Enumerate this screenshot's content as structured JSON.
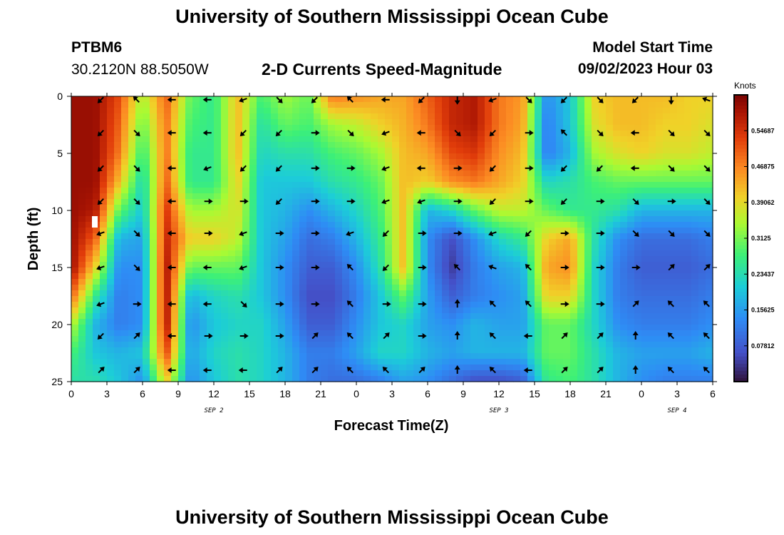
{
  "header": {
    "title": "University of Southern Mississippi Ocean Cube",
    "station": "PTBM6",
    "coords": "30.2120N  88.5050W",
    "subtitle": "2-D Currents Speed-Magnitude",
    "model_label": "Model Start Time",
    "model_time": "09/02/2023 Hour 03"
  },
  "footer": {
    "title": "University of Southern Mississippi Ocean Cube"
  },
  "chart_data": {
    "type": "heatmap",
    "title": "2-D Currents Speed-Magnitude",
    "xlabel": "Forecast Time(Z)",
    "ylabel": "Depth (ft)",
    "x_tick_labels": [
      "0",
      "3",
      "6",
      "9",
      "12",
      "15",
      "18",
      "21",
      "0",
      "3",
      "6",
      "9",
      "12",
      "15",
      "18",
      "21",
      "0",
      "3",
      "6"
    ],
    "x_hours": [
      0,
      54
    ],
    "y_ticks": [
      0,
      5,
      10,
      15,
      20,
      25
    ],
    "ylim": [
      0,
      25
    ],
    "date_labels": [
      {
        "label": "SEP 2",
        "hour": 12
      },
      {
        "label": "SEP 3",
        "hour": 36
      },
      {
        "label": "SEP 4",
        "hour": 51
      }
    ],
    "colorbar": {
      "unit": "Knots",
      "range": [
        0,
        0.625
      ],
      "tick_labels": [
        "0.07812",
        "0.15625",
        "0.23437",
        "0.3125",
        "0.39062",
        "0.46875",
        "0.54687"
      ],
      "tick_values": [
        0.07812,
        0.15625,
        0.23437,
        0.3125,
        0.39062,
        0.46875,
        0.54687
      ]
    },
    "speed_grid": {
      "hours": [
        0,
        2,
        4,
        6,
        8,
        10,
        12,
        14,
        16,
        18,
        20,
        22,
        24,
        26,
        28,
        30,
        32,
        34,
        36,
        38,
        40,
        42,
        44,
        46,
        48,
        50,
        52,
        54
      ],
      "depths": [
        0,
        2.5,
        5,
        7.5,
        10,
        12.5,
        15,
        17.5,
        20,
        22.5,
        25
      ],
      "values": [
        [
          0.6,
          0.6,
          0.52,
          0.34,
          0.5,
          0.3,
          0.26,
          0.42,
          0.28,
          0.34,
          0.3,
          0.48,
          0.46,
          0.44,
          0.44,
          0.5,
          0.56,
          0.58,
          0.48,
          0.45,
          0.14,
          0.2,
          0.4,
          0.42,
          0.42,
          0.42,
          0.4,
          0.4
        ],
        [
          0.6,
          0.6,
          0.5,
          0.3,
          0.48,
          0.28,
          0.26,
          0.42,
          0.24,
          0.3,
          0.28,
          0.34,
          0.36,
          0.4,
          0.43,
          0.48,
          0.56,
          0.58,
          0.48,
          0.44,
          0.12,
          0.2,
          0.38,
          0.42,
          0.42,
          0.4,
          0.4,
          0.38
        ],
        [
          0.6,
          0.6,
          0.48,
          0.26,
          0.48,
          0.26,
          0.26,
          0.42,
          0.22,
          0.24,
          0.24,
          0.28,
          0.3,
          0.34,
          0.42,
          0.44,
          0.52,
          0.54,
          0.46,
          0.42,
          0.12,
          0.18,
          0.34,
          0.38,
          0.4,
          0.38,
          0.38,
          0.36
        ],
        [
          0.6,
          0.6,
          0.42,
          0.22,
          0.5,
          0.26,
          0.26,
          0.4,
          0.2,
          0.2,
          0.2,
          0.24,
          0.26,
          0.3,
          0.42,
          0.4,
          0.46,
          0.48,
          0.44,
          0.4,
          0.22,
          0.24,
          0.28,
          0.3,
          0.3,
          0.3,
          0.3,
          0.3
        ],
        [
          0.6,
          0.58,
          0.3,
          0.2,
          0.54,
          0.34,
          0.34,
          0.38,
          0.2,
          0.18,
          0.14,
          0.18,
          0.22,
          0.28,
          0.42,
          0.18,
          0.22,
          0.3,
          0.36,
          0.36,
          0.3,
          0.26,
          0.26,
          0.24,
          0.18,
          0.18,
          0.18,
          0.18
        ],
        [
          0.6,
          0.5,
          0.18,
          0.16,
          0.56,
          0.4,
          0.4,
          0.36,
          0.2,
          0.16,
          0.1,
          0.12,
          0.18,
          0.26,
          0.42,
          0.14,
          0.06,
          0.14,
          0.22,
          0.26,
          0.4,
          0.44,
          0.24,
          0.14,
          0.1,
          0.1,
          0.1,
          0.12
        ],
        [
          0.6,
          0.4,
          0.14,
          0.14,
          0.58,
          0.3,
          0.3,
          0.3,
          0.2,
          0.14,
          0.08,
          0.08,
          0.14,
          0.24,
          0.42,
          0.14,
          0.04,
          0.12,
          0.16,
          0.18,
          0.44,
          0.46,
          0.22,
          0.12,
          0.08,
          0.08,
          0.08,
          0.1
        ],
        [
          0.5,
          0.26,
          0.12,
          0.14,
          0.58,
          0.18,
          0.22,
          0.24,
          0.2,
          0.14,
          0.06,
          0.06,
          0.12,
          0.2,
          0.3,
          0.16,
          0.08,
          0.12,
          0.14,
          0.16,
          0.4,
          0.4,
          0.22,
          0.12,
          0.1,
          0.1,
          0.1,
          0.12
        ],
        [
          0.36,
          0.18,
          0.12,
          0.14,
          0.58,
          0.14,
          0.2,
          0.22,
          0.22,
          0.16,
          0.08,
          0.08,
          0.14,
          0.2,
          0.22,
          0.16,
          0.14,
          0.18,
          0.16,
          0.16,
          0.3,
          0.3,
          0.22,
          0.14,
          0.12,
          0.12,
          0.12,
          0.14
        ],
        [
          0.28,
          0.2,
          0.18,
          0.2,
          0.52,
          0.16,
          0.22,
          0.24,
          0.22,
          0.18,
          0.12,
          0.12,
          0.16,
          0.22,
          0.22,
          0.18,
          0.16,
          0.18,
          0.18,
          0.18,
          0.3,
          0.3,
          0.24,
          0.18,
          0.16,
          0.16,
          0.16,
          0.18
        ],
        [
          0.24,
          0.24,
          0.2,
          0.14,
          0.4,
          0.14,
          0.2,
          0.24,
          0.22,
          0.18,
          0.12,
          0.1,
          0.1,
          0.12,
          0.16,
          0.14,
          0.1,
          0.06,
          0.06,
          0.08,
          0.26,
          0.28,
          0.24,
          0.18,
          0.14,
          0.12,
          0.12,
          0.12
        ]
      ]
    },
    "vectors": {
      "hours": [
        2.5,
        5.5,
        8.5,
        11.5,
        14.5,
        17.5,
        20.5,
        23.5,
        26.5,
        29.5,
        32.5,
        35.5,
        38.5,
        41.5,
        44.5,
        47.5,
        50.5,
        53.5
      ],
      "depths": [
        0.3,
        3.2,
        6.3,
        9.2,
        12.0,
        15.0,
        18.2,
        21.0,
        24.0
      ],
      "directions_deg": [
        [
          225,
          135,
          180,
          180,
          200,
          315,
          225,
          135,
          180,
          225,
          270,
          200,
          315,
          225,
          315,
          225,
          270,
          160
        ],
        [
          225,
          315,
          180,
          180,
          225,
          225,
          0,
          315,
          200,
          180,
          315,
          225,
          0,
          135,
          315,
          180,
          315,
          315
        ],
        [
          225,
          315,
          180,
          200,
          225,
          225,
          0,
          0,
          200,
          180,
          0,
          225,
          0,
          225,
          225,
          180,
          315,
          315
        ],
        [
          225,
          315,
          180,
          0,
          0,
          225,
          0,
          0,
          200,
          200,
          0,
          225,
          0,
          225,
          0,
          315,
          0,
          315
        ],
        [
          200,
          315,
          180,
          0,
          200,
          0,
          0,
          200,
          225,
          0,
          0,
          200,
          225,
          0,
          0,
          315,
          315,
          315
        ],
        [
          200,
          315,
          180,
          180,
          200,
          0,
          0,
          135,
          225,
          0,
          135,
          160,
          135,
          0,
          0,
          0,
          45,
          45
        ],
        [
          200,
          0,
          180,
          180,
          315,
          0,
          0,
          135,
          0,
          0,
          90,
          135,
          135,
          0,
          0,
          45,
          135,
          135
        ],
        [
          225,
          45,
          180,
          0,
          0,
          0,
          45,
          135,
          45,
          0,
          90,
          135,
          180,
          45,
          45,
          90,
          135,
          135
        ],
        [
          45,
          45,
          180,
          180,
          180,
          45,
          45,
          135,
          135,
          45,
          90,
          135,
          180,
          45,
          45,
          90,
          135,
          135
        ]
      ]
    }
  }
}
